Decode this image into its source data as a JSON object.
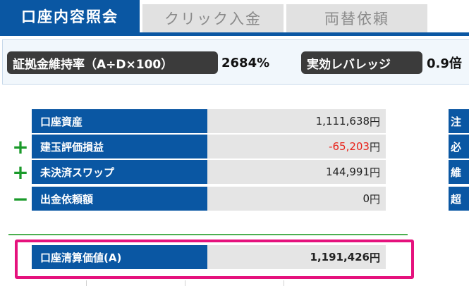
{
  "tabs": [
    {
      "label": "口座内容照会"
    },
    {
      "label": "クリック入金"
    },
    {
      "label": "両替依頼"
    }
  ],
  "ratios": {
    "margin_ratio_label": "証拠金維持率（A÷D×100）",
    "margin_ratio_value": "2684%",
    "leverage_label": "実効レバレッジ",
    "leverage_value": "0.9倍"
  },
  "balance": {
    "rows": [
      {
        "sign": "",
        "label": "口座資産",
        "value": "1,111,638",
        "unit": "円"
      },
      {
        "sign": "+",
        "label": "建玉評価損益",
        "value": "-65,203",
        "unit": "円"
      },
      {
        "sign": "+",
        "label": "未決済スワップ",
        "value": "144,991",
        "unit": "円"
      },
      {
        "sign": "−",
        "label": "出金依頼額",
        "value": "0",
        "unit": "円"
      }
    ],
    "total": {
      "label": "口座清算価値(A)",
      "value": "1,191,426",
      "unit": "円"
    }
  },
  "side_table": {
    "rows": [
      "注",
      "必",
      "維",
      "超"
    ]
  },
  "colors": {
    "primary_blue": "#0a57a3",
    "negative_red": "#e8231b",
    "sign_green": "#1a9a2a",
    "highlight_pink": "#e5127d"
  }
}
